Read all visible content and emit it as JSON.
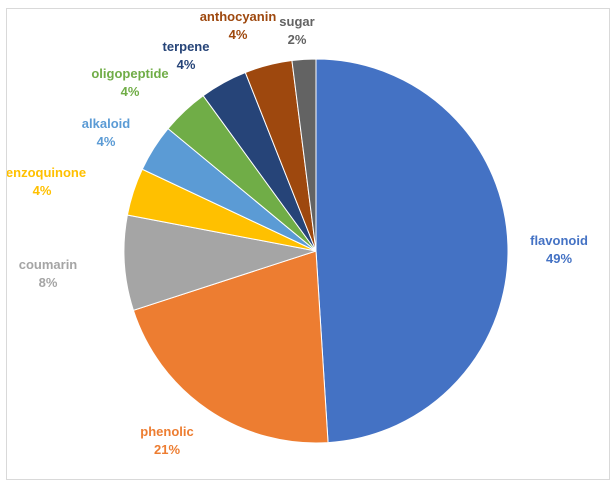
{
  "chart_data": {
    "type": "pie",
    "slices": [
      {
        "label": "flavonoid",
        "value": 49,
        "percent_text": "49%",
        "color": "#4472C4"
      },
      {
        "label": "phenolic",
        "value": 21,
        "percent_text": "21%",
        "color": "#ED7D31"
      },
      {
        "label": "coumarin",
        "value": 8,
        "percent_text": "8%",
        "color": "#A5A5A5"
      },
      {
        "label": "benzoquinone",
        "value": 4,
        "percent_text": "4%",
        "color": "#FFC000"
      },
      {
        "label": "alkaloid",
        "value": 4,
        "percent_text": "4%",
        "color": "#5B9BD5"
      },
      {
        "label": "oligopeptide",
        "value": 4,
        "percent_text": "4%",
        "color": "#70AD47"
      },
      {
        "label": "terpene",
        "value": 4,
        "percent_text": "4%",
        "color": "#264478"
      },
      {
        "label": "anthocyanin",
        "value": 4,
        "percent_text": "4%",
        "color": "#9E480E"
      },
      {
        "label": "sugar",
        "value": 2,
        "percent_text": "2%",
        "color": "#636363"
      }
    ],
    "start_angle_deg": 0,
    "direction": "clockwise",
    "legend": "none",
    "data_labels": "outside"
  }
}
